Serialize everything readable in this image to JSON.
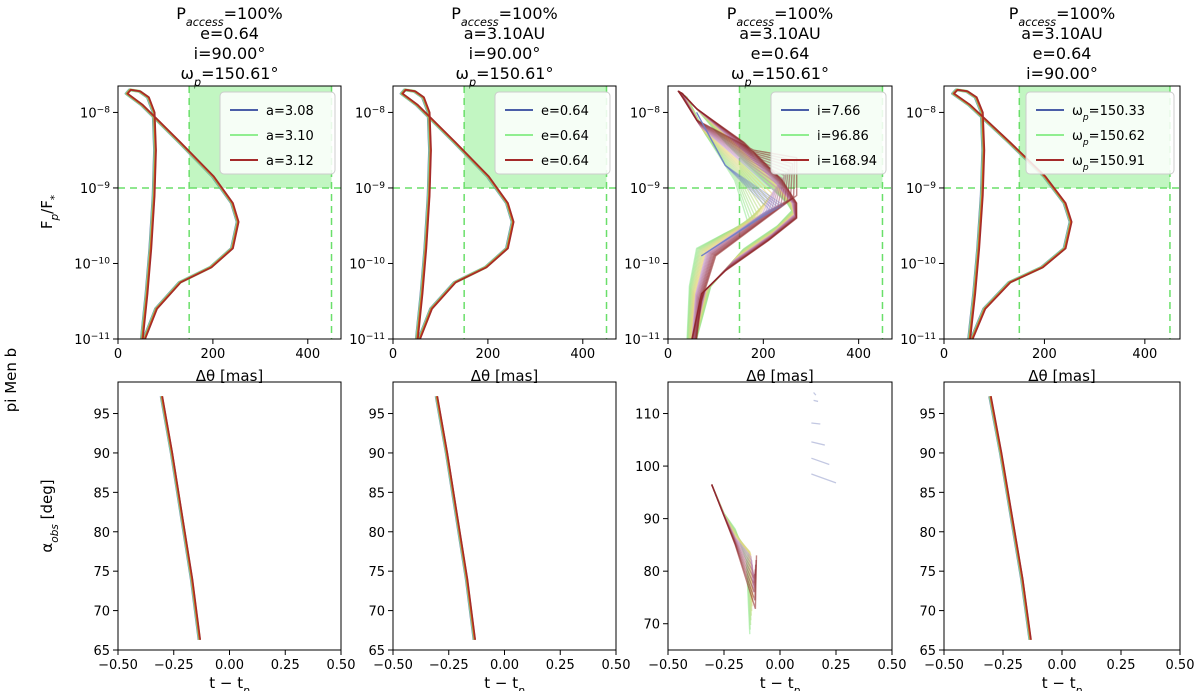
{
  "figure": {
    "row_label": "pi Men b",
    "top_xlabel": "Δθ [mas]",
    "top_ylabel": "F_p/F_*",
    "bottom_xlabel": "t − t_p",
    "bottom_ylabel": "α_obs [deg]"
  },
  "colors": {
    "blue": "#4a5ea8",
    "green": "#90ee90",
    "red": "#a52a2a",
    "orange": "#e05a00",
    "access": "#90ee90",
    "threshold": "#6adf6a"
  },
  "panels": [
    {
      "title_lines": [
        "P_access=100%",
        "e=0.64",
        "i=90.00°",
        "ω_p=150.61°"
      ],
      "legend": [
        {
          "label": "a=3.08",
          "color": "#4a5ea8"
        },
        {
          "label": "a=3.10",
          "color": "#90ee90"
        },
        {
          "label": "a=3.12",
          "color": "#a52a2a"
        }
      ],
      "variant": "normal"
    },
    {
      "title_lines": [
        "P_access=100%",
        "a=3.10AU",
        "i=90.00°",
        "ω_p=150.61°"
      ],
      "legend": [
        {
          "label": "e=0.64",
          "color": "#4a5ea8"
        },
        {
          "label": "e=0.64",
          "color": "#90ee90"
        },
        {
          "label": "e=0.64",
          "color": "#a52a2a"
        }
      ],
      "variant": "normal"
    },
    {
      "title_lines": [
        "P_access=100%",
        "a=3.10AU",
        "e=0.64",
        "ω_p=150.61°"
      ],
      "legend": [
        {
          "label": "i=7.66",
          "color": "#4a5ea8"
        },
        {
          "label": "i=96.86",
          "color": "#90ee90"
        },
        {
          "label": "i=168.94",
          "color": "#a52a2a"
        }
      ],
      "variant": "inclination"
    },
    {
      "title_lines": [
        "P_access=100%",
        "a=3.10AU",
        "e=0.64",
        "i=90.00°"
      ],
      "legend": [
        {
          "label": "ω_p=150.33",
          "color": "#4a5ea8"
        },
        {
          "label": "ω_p=150.62",
          "color": "#90ee90"
        },
        {
          "label": "ω_p=150.91",
          "color": "#a52a2a"
        }
      ],
      "variant": "normal"
    }
  ],
  "chart_data": [
    {
      "type": "line",
      "name": "top-row: planet-star flux ratio vs separation",
      "xlabel": "Δθ [mas]",
      "ylabel": "F_p/F_*",
      "xlim": [
        0,
        470
      ],
      "ylim_log10": [
        -11,
        -7.65
      ],
      "yscale": "log",
      "xticks": [
        "0",
        "200",
        "400"
      ],
      "yticks": [
        "10^-11",
        "10^-10",
        "10^-9",
        "10^-8"
      ],
      "accessible_region": {
        "x": [
          150,
          450
        ],
        "y_min": 1e-09
      },
      "threshold_lines": {
        "vertical": [
          150,
          450
        ],
        "horizontal": 1e-09
      },
      "curve_points_normal": [
        [
          50,
          -11.0
        ],
        [
          60,
          -10.4
        ],
        [
          68,
          -9.8
        ],
        [
          75,
          -9.1
        ],
        [
          78,
          -8.5
        ],
        [
          75,
          -8.0
        ],
        [
          63,
          -7.8
        ],
        [
          45,
          -7.72
        ],
        [
          25,
          -7.7
        ],
        [
          18,
          -7.75
        ],
        [
          50,
          -7.9
        ],
        [
          130,
          -8.4
        ],
        [
          200,
          -8.85
        ],
        [
          240,
          -9.2
        ],
        [
          252,
          -9.45
        ],
        [
          240,
          -9.8
        ],
        [
          195,
          -10.05
        ],
        [
          130,
          -10.25
        ],
        [
          80,
          -10.6
        ],
        [
          55,
          -11.0
        ]
      ]
    },
    {
      "type": "line",
      "name": "bottom-row: observed phase angle vs time from periastron",
      "xlabel": "t − t_p",
      "ylabel": "α_obs [deg]",
      "xlim": [
        -0.5,
        0.5
      ],
      "xticks": [
        "−0.50",
        "−0.25",
        "0.00",
        "0.25",
        "0.50"
      ],
      "panels_ylim": [
        [
          65,
          99
        ],
        [
          65,
          99
        ],
        [
          65,
          116
        ],
        [
          65,
          99
        ]
      ],
      "panels_yticks": [
        [
          "65",
          "70",
          "75",
          "80",
          "85",
          "90",
          "95"
        ],
        [
          "65",
          "70",
          "75",
          "80",
          "85",
          "90",
          "95"
        ],
        [
          "70",
          "80",
          "90",
          "100",
          "110"
        ],
        [
          "65",
          "70",
          "75",
          "80",
          "85",
          "90",
          "95"
        ]
      ],
      "curve_points": [
        [
          -0.305,
          97.2
        ],
        [
          -0.26,
          90
        ],
        [
          -0.215,
          82
        ],
        [
          -0.17,
          74
        ],
        [
          -0.135,
          66.3
        ]
      ],
      "secondary_segments_panel3": [
        {
          "x": [
            0.14,
            0.25
          ],
          "y": [
            98.5,
            96.8
          ]
        },
        {
          "x": [
            0.14,
            0.22
          ],
          "y": [
            101.5,
            100.3
          ]
        },
        {
          "x": [
            0.14,
            0.2
          ],
          "y": [
            104.6,
            104.0
          ]
        },
        {
          "x": [
            0.14,
            0.18
          ],
          "y": [
            108.2,
            108.0
          ]
        },
        {
          "x": [
            0.15,
            0.17
          ],
          "y": [
            112.5,
            112.3
          ]
        },
        {
          "x": [
            0.15,
            0.16
          ],
          "y": [
            114.0,
            113.5
          ]
        }
      ]
    }
  ]
}
